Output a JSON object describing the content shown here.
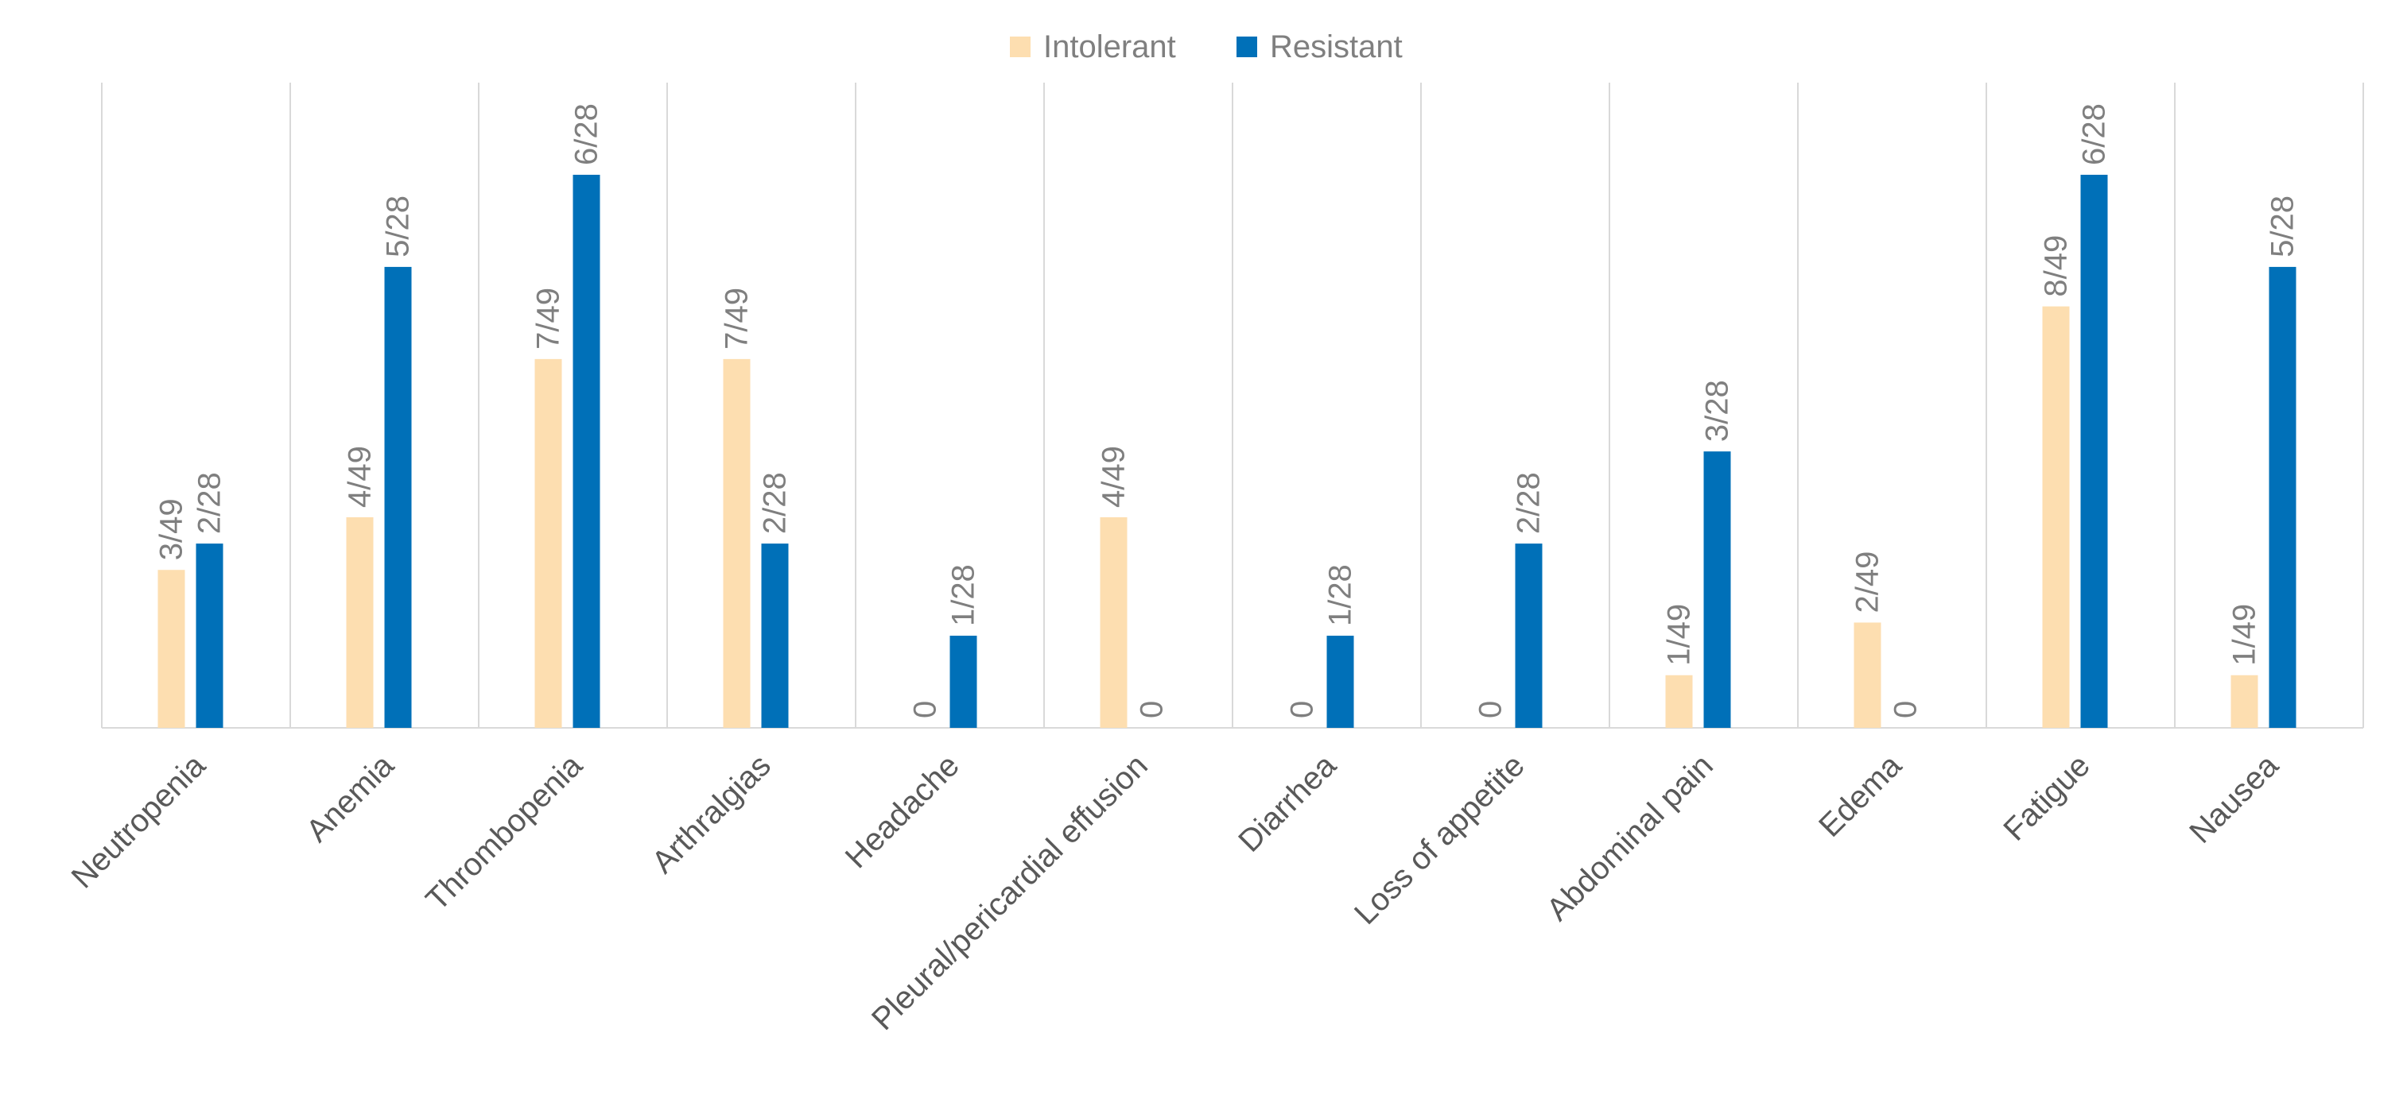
{
  "chart_data": {
    "type": "bar",
    "title": "",
    "xlabel": "",
    "ylabel": "",
    "categories": [
      "Neutropenia",
      "Anemia",
      "Thrombopenia",
      "Arthralgias",
      "Headache",
      "Pleural/pericardial effusion",
      "Diarrhea",
      "Loss of appetite",
      "Abdominal pain",
      "Edema",
      "Fatigue",
      "Nausea"
    ],
    "series": [
      {
        "name": "Intolerant",
        "color": "#FDDEB0",
        "values": [
          6.12,
          8.16,
          14.29,
          14.29,
          0,
          8.16,
          0,
          0,
          2.04,
          4.08,
          16.33,
          2.04
        ],
        "labels": [
          "3/49",
          "4/49",
          "7/49",
          "7/49",
          "0",
          "4/49",
          "0",
          "0",
          "1/49",
          "2/49",
          "8/49",
          "1/49"
        ]
      },
      {
        "name": "Resistant",
        "color": "#0070B8",
        "values": [
          7.14,
          17.86,
          21.43,
          7.14,
          3.57,
          0,
          3.57,
          7.14,
          10.71,
          0,
          21.43,
          17.86
        ],
        "labels": [
          "2/28",
          "5/28",
          "6/28",
          "2/28",
          "1/28",
          "0",
          "1/28",
          "2/28",
          "3/28",
          "0",
          "6/28",
          "5/28"
        ]
      }
    ],
    "ylim": [
      0,
      25
    ],
    "grid": "vertical separators",
    "legend": "top-center"
  }
}
